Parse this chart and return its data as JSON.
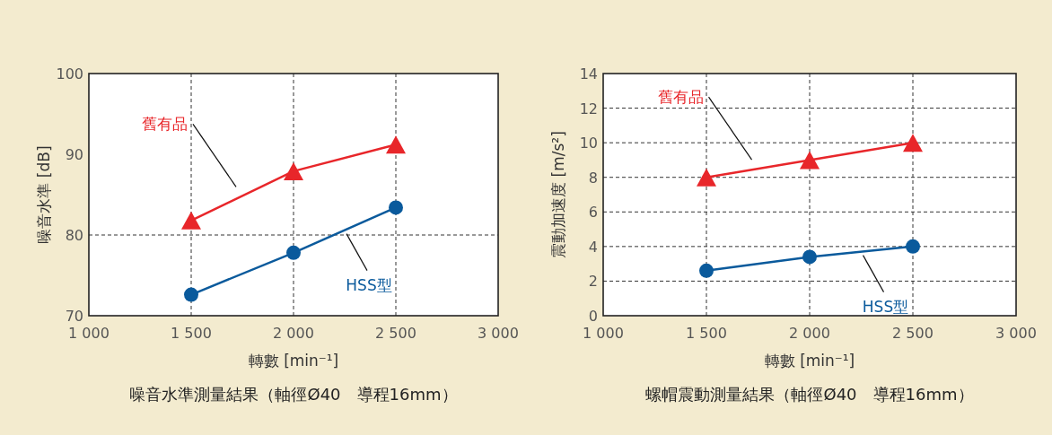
{
  "chart_data": [
    {
      "type": "line",
      "title": "噪音水準測量結果（軸徑Ø40　導程16mm）",
      "xlabel": "轉數 [min⁻¹]",
      "ylabel": "噪音水準 [dB]",
      "xlim": [
        1000,
        3000
      ],
      "xticks": [
        {
          "value": 1000,
          "label": "1 000"
        },
        {
          "value": 1500,
          "label": "1 500"
        },
        {
          "value": 2000,
          "label": "2 000"
        },
        {
          "value": 2500,
          "label": "2 500"
        },
        {
          "value": 3000,
          "label": "3 000"
        }
      ],
      "ylim": [
        70,
        100
      ],
      "yticks": [
        70,
        80,
        90,
        100
      ],
      "x": [
        1500,
        2000,
        2500
      ],
      "grid": "x",
      "ref_lines": [
        {
          "axis": "y",
          "value": 80,
          "color": "#333333",
          "line_style": "dashed"
        }
      ],
      "line_style": "solid",
      "series": [
        {
          "name": "舊有品",
          "color": "#e8262a",
          "marker": "triangle",
          "values": [
            81.8,
            87.9,
            91.2
          ]
        },
        {
          "name": "HSS型",
          "color": "#0a5a9c",
          "marker": "circle",
          "values": [
            72.6,
            77.8,
            83.4
          ]
        }
      ]
    },
    {
      "type": "line",
      "title": "螺帽震動測量結果（軸徑Ø40　導程16mm）",
      "xlabel": "轉數 [min⁻¹]",
      "ylabel": "震動加速度 [m/s²]",
      "xlim": [
        1000,
        3000
      ],
      "xticks": [
        {
          "value": 1000,
          "label": "1 000"
        },
        {
          "value": 1500,
          "label": "1 500"
        },
        {
          "value": 2000,
          "label": "2 000"
        },
        {
          "value": 2500,
          "label": "2 500"
        },
        {
          "value": 3000,
          "label": "3 000"
        }
      ],
      "ylim": [
        0,
        14
      ],
      "yticks": [
        0,
        2,
        4,
        6,
        8,
        10,
        12,
        14
      ],
      "x": [
        1500,
        2000,
        2500
      ],
      "grid": true,
      "line_style": "solid",
      "series": [
        {
          "name": "舊有品",
          "color": "#e8262a",
          "marker": "triangle",
          "values": [
            8,
            9,
            10
          ]
        },
        {
          "name": "HSS型",
          "color": "#0a5a9c",
          "marker": "circle",
          "values": [
            2.6,
            3.4,
            4.0
          ]
        }
      ]
    }
  ]
}
